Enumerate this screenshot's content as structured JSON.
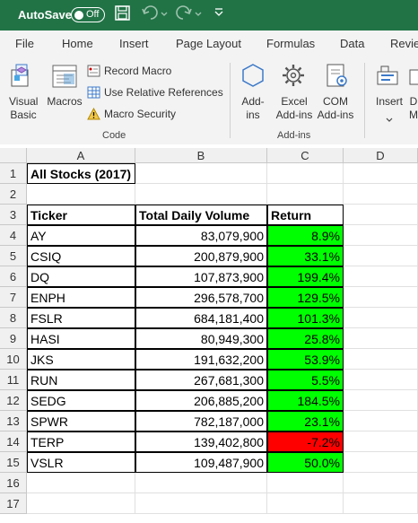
{
  "titlebar": {
    "autosave": "AutoSave",
    "toggle": "Off"
  },
  "tabs": [
    "File",
    "Home",
    "Insert",
    "Page Layout",
    "Formulas",
    "Data",
    "Revie"
  ],
  "ribbon": {
    "visual_basic": "Visual Basic",
    "macros": "Macros",
    "record_macro": "Record Macro",
    "relative_refs": "Use Relative References",
    "macro_security": "Macro Security",
    "code_group": "Code",
    "add_ins": "Add-ins",
    "excel_add_ins": "Excel Add-ins",
    "com_add_ins": "COM Add-ins",
    "addins_group": "Add-ins",
    "insert": "Insert",
    "design": "D M"
  },
  "columns": [
    "A",
    "B",
    "C",
    "D"
  ],
  "rows": [
    "1",
    "2",
    "3",
    "4",
    "5",
    "6",
    "7",
    "8",
    "9",
    "10",
    "11",
    "12",
    "13",
    "14",
    "15",
    "16",
    "17"
  ],
  "sheet": {
    "title": "All Stocks (2017)",
    "headers": [
      "Ticker",
      "Total Daily Volume",
      "Return"
    ],
    "data": [
      {
        "ticker": "AY",
        "volume": "83,079,900",
        "ret": "8.9%",
        "positive": true
      },
      {
        "ticker": "CSIQ",
        "volume": "200,879,900",
        "ret": "33.1%",
        "positive": true
      },
      {
        "ticker": "DQ",
        "volume": "107,873,900",
        "ret": "199.4%",
        "positive": true
      },
      {
        "ticker": "ENPH",
        "volume": "296,578,700",
        "ret": "129.5%",
        "positive": true
      },
      {
        "ticker": "FSLR",
        "volume": "684,181,400",
        "ret": "101.3%",
        "positive": true
      },
      {
        "ticker": "HASI",
        "volume": "80,949,300",
        "ret": "25.8%",
        "positive": true
      },
      {
        "ticker": "JKS",
        "volume": "191,632,200",
        "ret": "53.9%",
        "positive": true
      },
      {
        "ticker": "RUN",
        "volume": "267,681,300",
        "ret": "5.5%",
        "positive": true
      },
      {
        "ticker": "SEDG",
        "volume": "206,885,200",
        "ret": "184.5%",
        "positive": true
      },
      {
        "ticker": "SPWR",
        "volume": "782,187,000",
        "ret": "23.1%",
        "positive": true
      },
      {
        "ticker": "TERP",
        "volume": "139,402,800",
        "ret": "-7.2%",
        "positive": false
      },
      {
        "ticker": "VSLR",
        "volume": "109,487,900",
        "ret": "50.0%",
        "positive": true
      }
    ]
  },
  "colors": {
    "excel_green": "#217346",
    "positive": "#00ff00",
    "negative": "#ff0000"
  }
}
